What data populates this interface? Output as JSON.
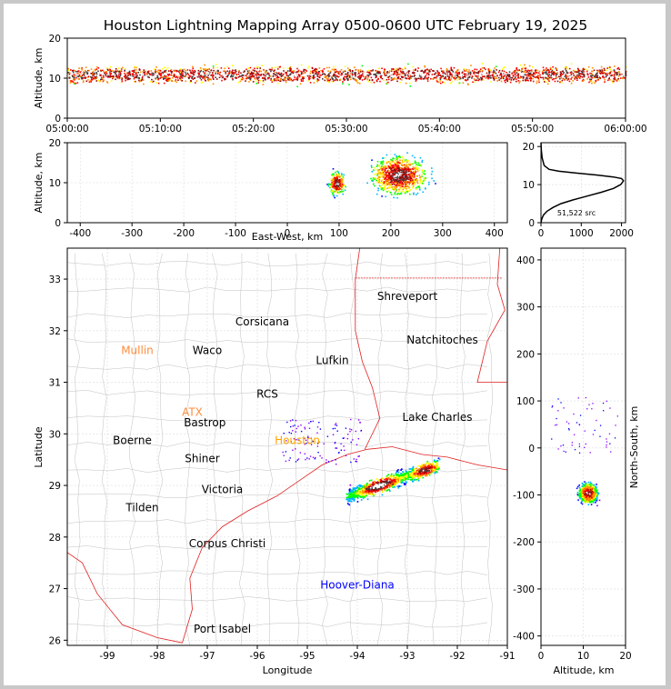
{
  "chart_data": [
    {
      "type": "scatter",
      "panel": "time-altitude",
      "title": "Houston Lightning Mapping Array 0500-0600 UTC February 19, 2025",
      "ylabel": "Altitude, km",
      "xlabel": "",
      "xticks": [
        "05:00:00",
        "05:10:00",
        "05:20:00",
        "05:30:00",
        "05:40:00",
        "05:50:00",
        "06:00:00"
      ],
      "xlim": [
        "05:00:00",
        "06:00:00"
      ],
      "ylim": [
        0,
        20
      ],
      "yticks": [
        0,
        10,
        20
      ],
      "density_band_km": [
        7,
        15
      ],
      "core_altitude_km": 11
    },
    {
      "type": "scatter",
      "panel": "east-west-altitude",
      "xlabel": "East-West, km",
      "ylabel": "Altitude, km",
      "xlim": [
        -425,
        425
      ],
      "ylim": [
        0,
        20
      ],
      "xticks": [
        -400,
        -300,
        -200,
        -100,
        0,
        100,
        200,
        300,
        400
      ],
      "yticks": [
        0,
        10,
        20
      ],
      "clusters": [
        {
          "x_range": [
            70,
            120
          ],
          "alt_range": [
            4,
            13
          ],
          "center": [
            95,
            10
          ]
        },
        {
          "x_range": [
            130,
            300
          ],
          "alt_range": [
            5,
            20
          ],
          "center": [
            215,
            12
          ]
        }
      ]
    },
    {
      "type": "line",
      "panel": "altitude-histogram",
      "annotation": "51,522 src",
      "xlim": [
        0,
        2100
      ],
      "xticks": [
        0,
        1000,
        2000
      ],
      "ylim": [
        0,
        21
      ],
      "yticks": [
        0,
        10,
        20
      ],
      "x": [
        0,
        20,
        60,
        150,
        300,
        500,
        800,
        1150,
        1500,
        1800,
        1980,
        2050,
        2000,
        1800,
        1400,
        900,
        450,
        200,
        80,
        30,
        10,
        0
      ],
      "y": [
        0,
        1,
        2,
        3,
        4,
        5,
        6,
        7,
        8,
        9,
        10,
        11,
        11.6,
        12,
        12.5,
        13,
        13.5,
        14,
        15,
        17,
        19,
        21
      ]
    },
    {
      "type": "scatter",
      "panel": "plan-view-map",
      "xlabel": "Longitude",
      "ylabel": "Latitude",
      "xlim": [
        -99.8,
        -91
      ],
      "ylim": [
        25.9,
        33.6
      ],
      "xticks": [
        -99,
        -98,
        -97,
        -96,
        -95,
        -94,
        -93,
        -92,
        -91
      ],
      "yticks": [
        26,
        27,
        28,
        29,
        30,
        31,
        32,
        33
      ],
      "cities": [
        {
          "name": "Shreveport",
          "lon": -93.0,
          "lat": 32.6,
          "color": "#000000"
        },
        {
          "name": "Corsicana",
          "lon": -95.9,
          "lat": 32.1,
          "color": "#000000"
        },
        {
          "name": "Natchitoches",
          "lon": -92.3,
          "lat": 31.75,
          "color": "#000000"
        },
        {
          "name": "Mullin",
          "lon": -98.4,
          "lat": 31.55,
          "color": "#ff8c3c"
        },
        {
          "name": "Waco",
          "lon": -97.0,
          "lat": 31.55,
          "color": "#000000"
        },
        {
          "name": "Lufkin",
          "lon": -94.5,
          "lat": 31.35,
          "color": "#000000"
        },
        {
          "name": "RCS",
          "lon": -95.8,
          "lat": 30.7,
          "color": "#000000"
        },
        {
          "name": "ATX",
          "lon": -97.3,
          "lat": 30.35,
          "color": "#ff8c3c"
        },
        {
          "name": "Lake Charles",
          "lon": -92.4,
          "lat": 30.25,
          "color": "#000000"
        },
        {
          "name": "Bastrop",
          "lon": -97.05,
          "lat": 30.15,
          "color": "#000000"
        },
        {
          "name": "Houston",
          "lon": -95.2,
          "lat": 29.8,
          "color": "#ffa500"
        },
        {
          "name": "Boerne",
          "lon": -98.5,
          "lat": 29.8,
          "color": "#000000"
        },
        {
          "name": "Shiner",
          "lon": -97.1,
          "lat": 29.45,
          "color": "#000000"
        },
        {
          "name": "Victoria",
          "lon": -96.7,
          "lat": 28.85,
          "color": "#000000"
        },
        {
          "name": "Tilden",
          "lon": -98.3,
          "lat": 28.5,
          "color": "#000000"
        },
        {
          "name": "Corpus Christi",
          "lon": -96.6,
          "lat": 27.8,
          "color": "#000000"
        },
        {
          "name": "Hoover-Diana",
          "lon": -94.0,
          "lat": 27.0,
          "color": "#0000ff"
        },
        {
          "name": "Port Isabel",
          "lon": -96.7,
          "lat": 26.15,
          "color": "#000000"
        }
      ],
      "storm_line": {
        "from": [
          -94.2,
          28.8
        ],
        "to": [
          -92.4,
          29.4
        ]
      }
    },
    {
      "type": "scatter",
      "panel": "altitude-north-south",
      "xlabel": "Altitude, km",
      "ylabel": "North-South, km",
      "xlim": [
        0,
        20
      ],
      "ylim": [
        -420,
        425
      ],
      "xticks": [
        0,
        10,
        20
      ],
      "yticks": [
        -400,
        -300,
        -200,
        -100,
        0,
        100,
        200,
        300,
        400
      ],
      "core": {
        "alt": 11,
        "ns": -95
      }
    }
  ],
  "colors": {
    "scale": [
      "#8b00ff",
      "#0000ff",
      "#00b4ff",
      "#00ff00",
      "#ffff00",
      "#ff8c00",
      "#ff0000",
      "#a00000",
      "#404040",
      "#ffffff"
    ],
    "state_border": "#e02020",
    "county": "#c0c0c0",
    "grid": "#dcdcdc"
  }
}
